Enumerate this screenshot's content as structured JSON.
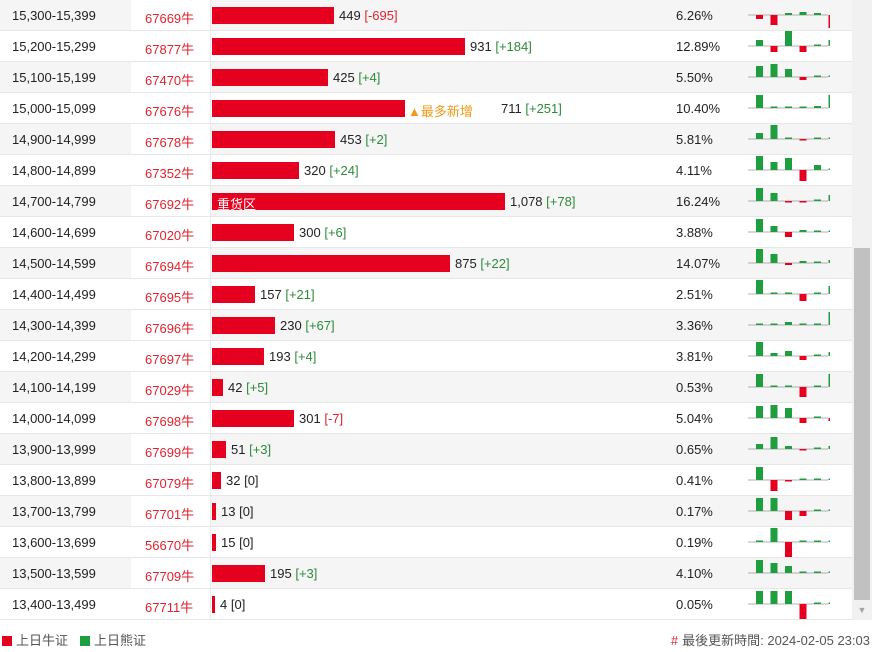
{
  "rows": [
    {
      "range": "15,300-15,399",
      "code": "67669牛",
      "count": 449,
      "count_text": "449",
      "change": "[-695]",
      "change_sign": "neg",
      "percent": "6.26%",
      "spark": [
        -0.4,
        -1.0,
        0.2,
        0.3,
        0.2,
        -1.3
      ]
    },
    {
      "range": "15,200-15,299",
      "code": "67877牛",
      "count": 931,
      "count_text": "931",
      "change": "[+184]",
      "change_sign": "pos",
      "percent": "12.89%",
      "spark": [
        0.6,
        -0.6,
        1.6,
        -0.6,
        0.0,
        0.6
      ]
    },
    {
      "range": "15,100-15,199",
      "code": "67470牛",
      "count": 425,
      "count_text": "425",
      "change": "[+4]",
      "change_sign": "pos",
      "percent": "5.50%",
      "spark": [
        1.1,
        1.3,
        0.8,
        -0.3,
        0.0,
        0.1
      ]
    },
    {
      "range": "15,000-15,099",
      "code": "67676牛",
      "count": 711,
      "count_text": "711",
      "change": "[+251]",
      "change_sign": "pos",
      "percent": "10.40%",
      "annotation": "▲最多新增",
      "spark": [
        1.3,
        0.0,
        0.1,
        0.1,
        0.2,
        1.3
      ]
    },
    {
      "range": "14,900-14,999",
      "code": "67678牛",
      "count": 453,
      "count_text": "453",
      "change": "[+2]",
      "change_sign": "pos",
      "percent": "5.81%",
      "spark": [
        0.6,
        1.4,
        0.1,
        -0.1,
        0.1,
        0.1
      ]
    },
    {
      "range": "14,800-14,899",
      "code": "67352牛",
      "count": 320,
      "count_text": "320",
      "change": "[+24]",
      "change_sign": "pos",
      "percent": "4.11%",
      "spark": [
        1.4,
        0.8,
        1.2,
        -1.1,
        0.5,
        0.0
      ]
    },
    {
      "range": "14,700-14,799",
      "code": "67692牛",
      "count": 1078,
      "count_text": "1,078",
      "change": "[+78]",
      "change_sign": "pos",
      "percent": "16.24%",
      "bar_label": "重货区",
      "spark": [
        1.3,
        0.8,
        -0.1,
        -0.1,
        0.0,
        0.6
      ]
    },
    {
      "range": "14,600-14,699",
      "code": "67020牛",
      "count": 300,
      "count_text": "300",
      "change": "[+6]",
      "change_sign": "pos",
      "percent": "3.88%",
      "spark": [
        1.3,
        0.6,
        -0.5,
        0.2,
        0.0,
        0.1
      ]
    },
    {
      "range": "14,500-14,599",
      "code": "67694牛",
      "count": 875,
      "count_text": "875",
      "change": "[+22]",
      "change_sign": "pos",
      "percent": "14.07%",
      "spark": [
        1.4,
        0.9,
        -0.2,
        0.2,
        0.0,
        0.3
      ]
    },
    {
      "range": "14,400-14,499",
      "code": "67695牛",
      "count": 157,
      "count_text": "157",
      "change": "[+21]",
      "change_sign": "pos",
      "percent": "2.51%",
      "spark": [
        1.4,
        0.0,
        0.1,
        -0.7,
        0.0,
        0.8
      ]
    },
    {
      "range": "14,300-14,399",
      "code": "67696牛",
      "count": 230,
      "count_text": "230",
      "change": "[+67]",
      "change_sign": "pos",
      "percent": "3.36%",
      "spark": [
        0.0,
        0.1,
        0.3,
        0.0,
        0.0,
        1.3
      ]
    },
    {
      "range": "14,200-14,299",
      "code": "67697牛",
      "count": 193,
      "count_text": "193",
      "change": "[+4]",
      "change_sign": "pos",
      "percent": "3.81%",
      "spark": [
        1.4,
        0.3,
        0.5,
        -0.4,
        0.0,
        0.4
      ]
    },
    {
      "range": "14,100-14,199",
      "code": "67029牛",
      "count": 42,
      "count_text": "42",
      "change": "[+5]",
      "change_sign": "pos",
      "percent": "0.53%",
      "spark": [
        1.3,
        0.0,
        0.1,
        -1.0,
        0.0,
        1.3
      ]
    },
    {
      "range": "14,000-14,099",
      "code": "67698牛",
      "count": 301,
      "count_text": "301",
      "change": "[-7]",
      "change_sign": "neg",
      "percent": "5.04%",
      "spark": [
        1.2,
        1.3,
        1.0,
        -0.5,
        0.0,
        -0.3
      ]
    },
    {
      "range": "13,900-13,999",
      "code": "67699牛",
      "count": 51,
      "count_text": "51",
      "change": "[+3]",
      "change_sign": "pos",
      "percent": "0.65%",
      "spark": [
        0.5,
        1.2,
        0.3,
        -0.1,
        0.0,
        0.3
      ]
    },
    {
      "range": "13,800-13,899",
      "code": "67079牛",
      "count": 32,
      "count_text": "32",
      "change": "[0]",
      "change_sign": "zero",
      "percent": "0.41%",
      "spark": [
        1.3,
        -1.1,
        -0.1,
        0.0,
        0.0,
        0.0
      ]
    },
    {
      "range": "13,700-13,799",
      "code": "67701牛",
      "count": 13,
      "count_text": "13",
      "change": "[0]",
      "change_sign": "zero",
      "percent": "0.17%",
      "spark": [
        1.3,
        1.3,
        -0.9,
        -0.5,
        0.0,
        0.0
      ]
    },
    {
      "range": "13,600-13,699",
      "code": "56670牛",
      "count": 15,
      "count_text": "15",
      "change": "[0]",
      "change_sign": "zero",
      "percent": "0.19%",
      "spark": [
        0.0,
        1.4,
        -1.5,
        0.0,
        0.0,
        0.0
      ]
    },
    {
      "range": "13,500-13,599",
      "code": "67709牛",
      "count": 195,
      "count_text": "195",
      "change": "[+3]",
      "change_sign": "pos",
      "percent": "4.10%",
      "spark": [
        1.3,
        1.0,
        0.7,
        0.1,
        0.0,
        0.1
      ]
    },
    {
      "range": "13,400-13,499",
      "code": "67711牛",
      "count": 4,
      "count_text": "4",
      "change": "[0]",
      "change_sign": "zero",
      "percent": "0.05%",
      "spark": [
        1.3,
        1.3,
        1.3,
        -1.5,
        0.0,
        0.0
      ]
    }
  ],
  "bar_max_count": 1078,
  "legend": {
    "bull_label": "上日牛证",
    "bear_label": "上日熊证",
    "bull_color": "#e60020",
    "bear_color": "#1e9e3e"
  },
  "updated": {
    "label": "最後更新時間:",
    "value": "2024-02-05 23:03"
  },
  "colors": {
    "bar": "#e60020",
    "up": "#1e9e3e",
    "down": "#e60020",
    "positive_change": "#2e8b3a",
    "negative_change": "#e0232f",
    "code": "#e0232f",
    "annotation": "#f09a1a"
  },
  "scroll_down_icon": "triangle-down-icon"
}
